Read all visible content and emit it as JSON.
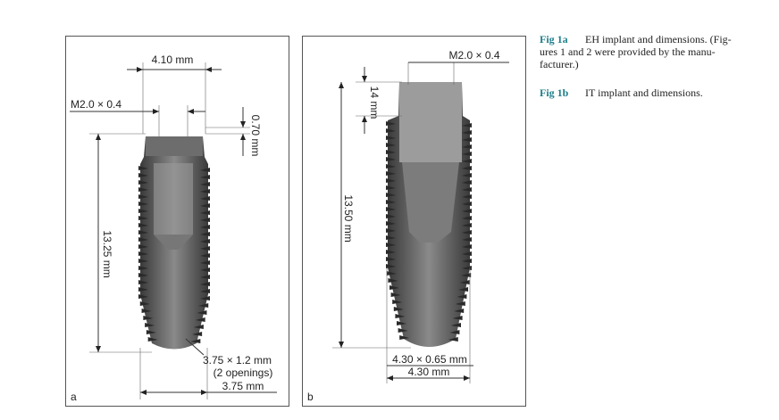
{
  "panels": [
    {
      "letter": "a",
      "labels": {
        "top_width": "4.10 mm",
        "thread": "M2.0 × 0.4",
        "collar_height": "0.70 mm",
        "length": "13.25 mm",
        "apex_line1": "3.75 × 1.2 mm",
        "apex_line2": "(2 openings)",
        "bottom_width": "3.75 mm"
      }
    },
    {
      "letter": "b",
      "labels": {
        "thread": "M2.0 × 0.4",
        "collar_height": "14 mm",
        "length": "13.50 mm",
        "pitch": "4.30 × 0.65 mm",
        "bottom_width": "4.30 mm"
      }
    }
  ],
  "captions": [
    {
      "label": "Fig 1a",
      "lines": [
        "EH implant and dimensions. (Fig-",
        "ures 1 and 2 were provided by the manu-",
        "facturer.)"
      ]
    },
    {
      "label": "Fig 1b",
      "lines": [
        "IT implant and dimensions."
      ]
    }
  ]
}
